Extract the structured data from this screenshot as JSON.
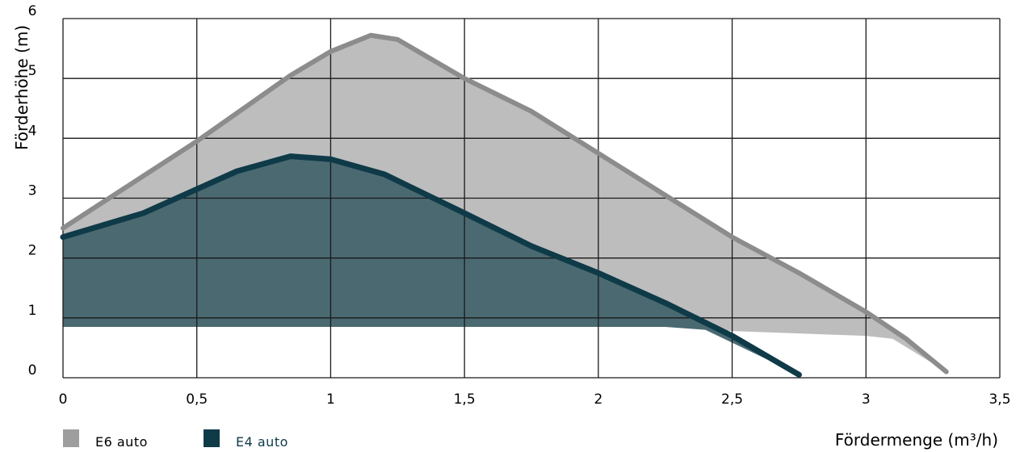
{
  "chart_data": {
    "type": "area",
    "ylabel": "Förderhöhe (m)",
    "xlabel": "Fördermenge (m³/h)",
    "xlim": [
      0,
      3.5
    ],
    "ylim": [
      0,
      6
    ],
    "x_ticks": [
      "0",
      "0,5",
      "1",
      "1,5",
      "2",
      "2,5",
      "3",
      "3,5"
    ],
    "y_ticks": [
      "0",
      "1",
      "2",
      "3",
      "4",
      "5",
      "6"
    ],
    "grid": true,
    "legend_position": "bottom-left",
    "series": [
      {
        "name": "E6 auto",
        "color": "#bdbdbe",
        "line_color": "#8c8c8c",
        "min_head": [
          [
            0,
            0.85
          ],
          [
            2.3,
            0.85
          ],
          [
            2.5,
            0.78
          ],
          [
            3.0,
            0.7
          ],
          [
            3.1,
            0.65
          ]
        ],
        "max_curve": [
          [
            0,
            2.5
          ],
          [
            0.5,
            3.95
          ],
          [
            0.85,
            5.05
          ],
          [
            1.0,
            5.45
          ],
          [
            1.15,
            5.72
          ],
          [
            1.25,
            5.65
          ],
          [
            1.5,
            5.0
          ],
          [
            1.75,
            4.45
          ],
          [
            2.0,
            3.75
          ],
          [
            2.25,
            3.05
          ],
          [
            2.5,
            2.35
          ],
          [
            2.75,
            1.75
          ],
          [
            3.0,
            1.1
          ],
          [
            3.15,
            0.65
          ],
          [
            3.3,
            0.1
          ]
        ]
      },
      {
        "name": "E4 auto",
        "color": "#4a6971",
        "line_color": "#0f3a48",
        "min_head": [
          [
            0,
            0.85
          ],
          [
            2.25,
            0.85
          ],
          [
            2.4,
            0.8
          ]
        ],
        "max_curve": [
          [
            0,
            2.35
          ],
          [
            0.3,
            2.75
          ],
          [
            0.5,
            3.15
          ],
          [
            0.65,
            3.45
          ],
          [
            0.85,
            3.7
          ],
          [
            1.0,
            3.65
          ],
          [
            1.2,
            3.4
          ],
          [
            1.5,
            2.75
          ],
          [
            1.75,
            2.2
          ],
          [
            2.0,
            1.75
          ],
          [
            2.25,
            1.25
          ],
          [
            2.5,
            0.7
          ],
          [
            2.75,
            0.05
          ]
        ]
      }
    ]
  }
}
